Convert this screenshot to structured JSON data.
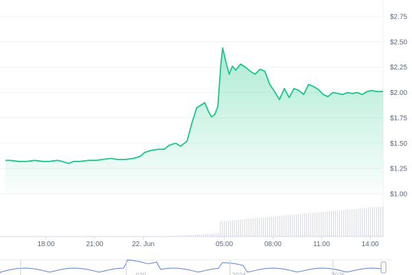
{
  "chart_data": {
    "type": "area",
    "title": "",
    "xlabel": "",
    "ylabel": "",
    "ylim": [
      1.0,
      2.75
    ],
    "yticks": [
      "$1.00",
      "$1.25",
      "$1.50",
      "$1.75",
      "$2.00",
      "$2.25",
      "$2.50",
      "$2.75"
    ],
    "ytick_values": [
      1.0,
      1.25,
      1.5,
      1.75,
      2.0,
      2.25,
      2.5,
      2.75
    ],
    "x_range_hours": [
      15.5,
      38.8
    ],
    "xticks": [
      {
        "label": "18:00",
        "t": 18
      },
      {
        "label": "21:00",
        "t": 21
      },
      {
        "label": "22. Jun",
        "t": 24
      },
      {
        "label": "05:00",
        "t": 29
      },
      {
        "label": "08:00",
        "t": 32
      },
      {
        "label": "11:00",
        "t": 35
      },
      {
        "label": "14:00",
        "t": 38
      }
    ],
    "grid": true,
    "line_color": "#16c784",
    "series": [
      {
        "values": [
          [
            15.5,
            1.33
          ],
          [
            15.8,
            1.33
          ],
          [
            16.3,
            1.32
          ],
          [
            16.8,
            1.32
          ],
          [
            17.3,
            1.33
          ],
          [
            17.8,
            1.32
          ],
          [
            18.2,
            1.32
          ],
          [
            18.7,
            1.33
          ],
          [
            19.0,
            1.32
          ],
          [
            19.4,
            1.3
          ],
          [
            19.7,
            1.32
          ],
          [
            20.1,
            1.32
          ],
          [
            20.6,
            1.33
          ],
          [
            21.1,
            1.33
          ],
          [
            21.5,
            1.34
          ],
          [
            22.0,
            1.35
          ],
          [
            22.4,
            1.34
          ],
          [
            22.9,
            1.34
          ],
          [
            23.4,
            1.35
          ],
          [
            23.8,
            1.37
          ],
          [
            24.1,
            1.41
          ],
          [
            24.5,
            1.43
          ],
          [
            24.9,
            1.44
          ],
          [
            25.3,
            1.44
          ],
          [
            25.6,
            1.48
          ],
          [
            26.0,
            1.5
          ],
          [
            26.3,
            1.47
          ],
          [
            26.7,
            1.52
          ],
          [
            27.0,
            1.7
          ],
          [
            27.3,
            1.85
          ],
          [
            27.6,
            1.88
          ],
          [
            27.8,
            1.9
          ],
          [
            28.0,
            1.82
          ],
          [
            28.2,
            1.76
          ],
          [
            28.4,
            1.78
          ],
          [
            28.6,
            1.86
          ],
          [
            28.8,
            2.3
          ],
          [
            28.9,
            2.44
          ],
          [
            29.1,
            2.3
          ],
          [
            29.3,
            2.18
          ],
          [
            29.5,
            2.26
          ],
          [
            29.7,
            2.22
          ],
          [
            30.0,
            2.28
          ],
          [
            30.3,
            2.25
          ],
          [
            30.6,
            2.21
          ],
          [
            30.9,
            2.18
          ],
          [
            31.2,
            2.23
          ],
          [
            31.5,
            2.21
          ],
          [
            31.8,
            2.08
          ],
          [
            32.1,
            2.01
          ],
          [
            32.4,
            1.93
          ],
          [
            32.7,
            2.04
          ],
          [
            33.0,
            1.95
          ],
          [
            33.3,
            2.04
          ],
          [
            33.6,
            2.02
          ],
          [
            33.9,
            1.98
          ],
          [
            34.2,
            2.08
          ],
          [
            34.5,
            2.06
          ],
          [
            34.8,
            2.03
          ],
          [
            35.1,
            1.98
          ],
          [
            35.4,
            1.96
          ],
          [
            35.7,
            2.0
          ],
          [
            36.0,
            1.99
          ],
          [
            36.3,
            1.98
          ],
          [
            36.6,
            2.0
          ],
          [
            36.9,
            1.99
          ],
          [
            37.2,
            2.0
          ],
          [
            37.5,
            1.98
          ],
          [
            37.8,
            2.01
          ],
          [
            38.1,
            2.02
          ],
          [
            38.4,
            2.01
          ],
          [
            38.8,
            2.01
          ]
        ]
      }
    ],
    "navigator": {
      "labels": [
        "...020",
        "2024",
        "...2025"
      ]
    }
  }
}
